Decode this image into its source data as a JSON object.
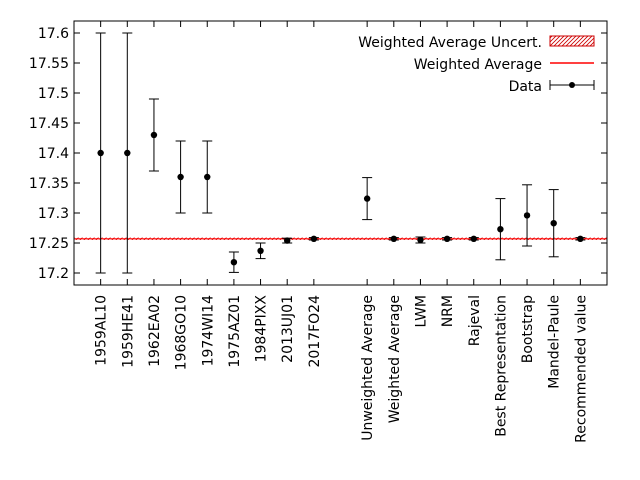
{
  "chart_data": {
    "type": "scatter",
    "title": "",
    "xlabel": "",
    "ylabel": "",
    "ylim": [
      17.18,
      17.62
    ],
    "yticks": [
      17.2,
      17.25,
      17.3,
      17.35,
      17.4,
      17.45,
      17.5,
      17.55,
      17.6
    ],
    "ytick_labels": [
      "17.2",
      "17.25",
      "17.3",
      "17.35",
      "17.4",
      "17.45",
      "17.5",
      "17.55",
      "17.6"
    ],
    "categories": [
      "1959AL10",
      "1959HE41",
      "1962EA02",
      "1968GO10",
      "1974WI14",
      "1975AZ01",
      "1984PIXX",
      "2013UJ01",
      "2017FO24",
      "",
      "Unweighted Average",
      "Weighted Average",
      "LWM",
      "NRM",
      "Rajeval",
      "Best Representation",
      "Bootstrap",
      "Mandel-Paule",
      "Recommended value"
    ],
    "series": [
      {
        "name": "Data",
        "style": "points with error bars",
        "color": "#000000",
        "points": [
          {
            "x": 1,
            "y": 17.4,
            "err": 0.2
          },
          {
            "x": 2,
            "y": 17.4,
            "err": 0.2
          },
          {
            "x": 3,
            "y": 17.43,
            "err": 0.06
          },
          {
            "x": 4,
            "y": 17.36,
            "err": 0.06
          },
          {
            "x": 5,
            "y": 17.36,
            "err": 0.06
          },
          {
            "x": 6,
            "y": 17.218,
            "err": 0.017
          },
          {
            "x": 7,
            "y": 17.237,
            "err": 0.013
          },
          {
            "x": 8,
            "y": 17.254,
            "err": 0.004
          },
          {
            "x": 9,
            "y": 17.257,
            "err": 0.002
          },
          {
            "x": 11,
            "y": 17.324,
            "err": 0.035
          },
          {
            "x": 12,
            "y": 17.257,
            "err": 0.002
          },
          {
            "x": 13,
            "y": 17.255,
            "err": 0.005
          },
          {
            "x": 14,
            "y": 17.257,
            "err": 0.002
          },
          {
            "x": 15,
            "y": 17.257,
            "err": 0.002
          },
          {
            "x": 16,
            "y": 17.273,
            "err": 0.051
          },
          {
            "x": 17,
            "y": 17.296,
            "err": 0.051
          },
          {
            "x": 18,
            "y": 17.283,
            "err": 0.056
          },
          {
            "x": 19,
            "y": 17.257,
            "err": 0.002
          }
        ]
      },
      {
        "name": "Weighted Average",
        "style": "line",
        "color": "#ff0000",
        "value": 17.257
      },
      {
        "name": "Weighted Average Uncert.",
        "style": "hatched band",
        "color": "#cc0000",
        "range": [
          17.255,
          17.259
        ]
      }
    ],
    "legend": {
      "position": "top-right",
      "entries": [
        "Weighted Average Uncert.",
        "Weighted Average",
        "Data"
      ]
    }
  }
}
